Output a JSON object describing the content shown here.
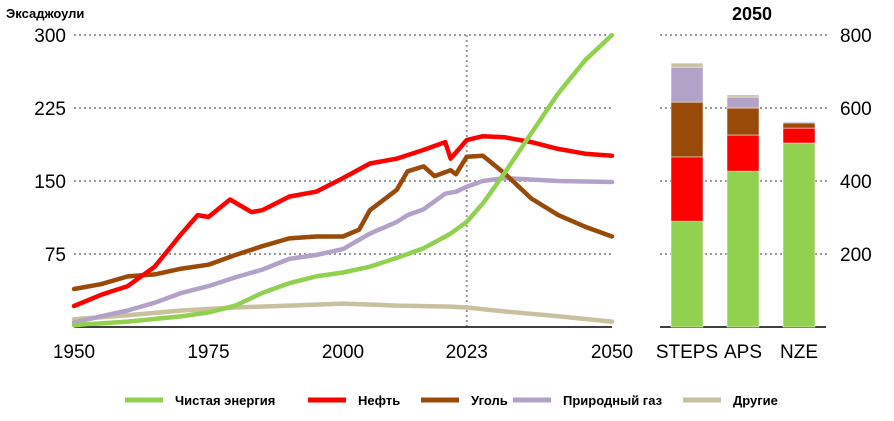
{
  "chart_data": [
    {
      "type": "line",
      "ylabel": "Эксаджоули",
      "ylim": [
        0,
        300
      ],
      "yticks": [
        "75",
        "150",
        "225",
        "300"
      ],
      "xlim": [
        1950,
        2050
      ],
      "xticks": [
        "1950",
        "1975",
        "2000",
        "2023",
        "2050"
      ],
      "marker_year": 2023,
      "grid": true,
      "series": [
        {
          "name": "Чистая энергия",
          "color": "#92d050",
          "x": [
            1950,
            1960,
            1970,
            1975,
            1980,
            1985,
            1990,
            1995,
            2000,
            2005,
            2010,
            2015,
            2020,
            2023,
            2026,
            2030,
            2035,
            2040,
            2045,
            2050
          ],
          "y": [
            2,
            5.5,
            11,
            15,
            22,
            35,
            45,
            52,
            56,
            62,
            71,
            81,
            96,
            108,
            127,
            158,
            199,
            240,
            274,
            300
          ]
        },
        {
          "name": "Нефть",
          "color": "#ff0000",
          "x": [
            1950,
            1955,
            1960,
            1965,
            1970,
            1973,
            1975,
            1979,
            1983,
            1985,
            1990,
            1995,
            2000,
            2005,
            2010,
            2015,
            2019,
            2020,
            2023,
            2026,
            2030,
            2035,
            2040,
            2045,
            2050
          ],
          "y": [
            21.6,
            33,
            42,
            62,
            96,
            115,
            113,
            131,
            118,
            120,
            134,
            139,
            153,
            168,
            173,
            182,
            190,
            173,
            192,
            196,
            195,
            190,
            183,
            178,
            176
          ]
        },
        {
          "name": "Уголь",
          "color": "#994a08",
          "x": [
            1950,
            1955,
            1960,
            1965,
            1970,
            1975,
            1980,
            1985,
            1990,
            1995,
            2000,
            2003,
            2005,
            2010,
            2012,
            2015,
            2017,
            2020,
            2021,
            2023,
            2026,
            2030,
            2035,
            2040,
            2045,
            2050
          ],
          "y": [
            39,
            44,
            52,
            54,
            60,
            64,
            74,
            83,
            91,
            93,
            93,
            100,
            120,
            141,
            160,
            165,
            155,
            161,
            157,
            175,
            176,
            158,
            132,
            115,
            103,
            93
          ]
        },
        {
          "name": "Природный газ",
          "color": "#b3a2c7",
          "x": [
            1950,
            1955,
            1960,
            1965,
            1970,
            1975,
            1980,
            1985,
            1990,
            1995,
            2000,
            2005,
            2010,
            2012,
            2015,
            2019,
            2021,
            2023,
            2026,
            2030,
            2040,
            2050
          ],
          "y": [
            4.5,
            11,
            17,
            25,
            35,
            42,
            51,
            59,
            70,
            74,
            80,
            96,
            108,
            115,
            121,
            137,
            139,
            144,
            150,
            153,
            150,
            149
          ]
        },
        {
          "name": "Другие",
          "color": "#c9c0a0",
          "x": [
            1950,
            1960,
            1970,
            1980,
            1990,
            2000,
            2010,
            2020,
            2023,
            2030,
            2040,
            2050
          ],
          "y": [
            8,
            12,
            17,
            20,
            22,
            24,
            22,
            21,
            20,
            16,
            11,
            5.5
          ]
        }
      ]
    },
    {
      "type": "bar",
      "stacked": true,
      "title": "2050",
      "ylim": [
        0,
        800
      ],
      "yticks": [
        "200",
        "400",
        "600",
        "800"
      ],
      "categories": [
        "STEPS",
        "APS",
        "NZE"
      ],
      "series": [
        {
          "name": "Чистая энергия",
          "color": "#92d050",
          "values": [
            290,
            427,
            504
          ]
        },
        {
          "name": "Нефть",
          "color": "#ff0000",
          "values": [
            176,
            99,
            41
          ]
        },
        {
          "name": "Уголь",
          "color": "#994a08",
          "values": [
            150,
            74,
            14
          ]
        },
        {
          "name": "Природный газ",
          "color": "#b3a2c7",
          "values": [
            96,
            30,
            3
          ]
        },
        {
          "name": "Другие",
          "color": "#c9c0a0",
          "values": [
            11,
            6,
            2
          ]
        }
      ]
    }
  ],
  "legend": {
    "placement": "bottom",
    "items": [
      {
        "label": "Чистая энергия",
        "color": "#92d050"
      },
      {
        "label": "Нефть",
        "color": "#ff0000"
      },
      {
        "label": "Уголь",
        "color": "#994a08"
      },
      {
        "label": "Природный газ",
        "color": "#b3a2c7"
      },
      {
        "label": "Другие",
        "color": "#c9c0a0"
      }
    ]
  }
}
